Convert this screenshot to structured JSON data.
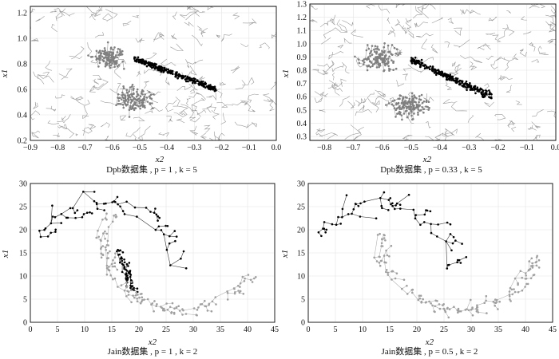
{
  "chart_data": [
    {
      "type": "scatter",
      "subplot": "top-left",
      "caption": "Dpb数据集 , p = 1 , k = 5",
      "xlabel": "x2",
      "ylabel": "x1",
      "xlim": [
        -0.9,
        0.0
      ],
      "ylim": [
        0.2,
        1.25
      ],
      "xticks": [
        "−0.9",
        "−0.8",
        "−0.7",
        "−0.6",
        "−0.5",
        "−0.4",
        "−0.3",
        "−0.2",
        "−0.1",
        "0.0"
      ],
      "yticks": [
        "0.2",
        "0.4",
        "0.6",
        "0.8",
        "1.0",
        "1.2"
      ],
      "grid": true,
      "clusters": [
        {
          "color": "#000000",
          "x_range": [
            -0.52,
            -0.22
          ],
          "y_range": [
            0.6,
            0.84
          ],
          "shape": "diagonal band"
        },
        {
          "color": "#808080",
          "x_range": [
            -0.62,
            -0.42
          ],
          "y_range": [
            0.38,
            0.66
          ],
          "shape": "blob"
        },
        {
          "color": "#808080",
          "x_range": [
            -0.7,
            -0.52
          ],
          "y_range": [
            0.72,
            0.98
          ],
          "shape": "blob"
        }
      ]
    },
    {
      "type": "scatter",
      "subplot": "top-right",
      "caption": "Dpb数据集 , p = 0.33 , k = 5",
      "xlabel": "x2",
      "ylabel": "x1",
      "xlim": [
        -0.85,
        0.0
      ],
      "ylim": [
        0.27,
        1.3
      ],
      "xticks": [
        "−0.8",
        "−0.7",
        "−0.6",
        "−0.5",
        "−0.4",
        "−0.3",
        "−0.2",
        "−0.1",
        "0.0"
      ],
      "yticks": [
        "0.3",
        "0.4",
        "0.5",
        "0.6",
        "0.7",
        "0.8",
        "0.9",
        "1.0",
        "1.1",
        "1.2",
        "1.3"
      ],
      "grid": true,
      "clusters": [
        {
          "color": "#000000",
          "x_range": [
            -0.5,
            -0.22
          ],
          "y_range": [
            0.6,
            0.88
          ],
          "shape": "diagonal band"
        },
        {
          "color": "#808080",
          "x_range": [
            -0.6,
            -0.4
          ],
          "y_range": [
            0.4,
            0.66
          ],
          "shape": "blob"
        },
        {
          "color": "#808080",
          "x_range": [
            -0.7,
            -0.52
          ],
          "y_range": [
            0.75,
            1.02
          ],
          "shape": "blob"
        }
      ]
    },
    {
      "type": "scatter",
      "subplot": "bottom-left",
      "caption": "Jain数据集 , p = 1 , k = 2",
      "xlabel": "x2",
      "ylabel": "x1",
      "xlim": [
        0,
        45
      ],
      "ylim": [
        0,
        30
      ],
      "xticks": [
        "0",
        "5",
        "10",
        "15",
        "20",
        "25",
        "30",
        "35",
        "40",
        "45"
      ],
      "yticks": [
        "0",
        "5",
        "10",
        "15",
        "20",
        "25",
        "30"
      ],
      "grid": true,
      "clusters": [
        {
          "color": "#000000",
          "shape": "upper arc",
          "x_range": [
            1,
            28
          ],
          "y_range": [
            13,
            27
          ]
        },
        {
          "color": "#000000",
          "shape": "inner dense tail",
          "x_range": [
            15,
            20
          ],
          "y_range": [
            6,
            16
          ]
        },
        {
          "color": "#a0a0a0",
          "shape": "lower arc",
          "x_range": [
            17,
            42
          ],
          "y_range": [
            2,
            17
          ]
        }
      ]
    },
    {
      "type": "scatter",
      "subplot": "bottom-right",
      "caption": "Jain数据集 , p = 0.5 , k = 2",
      "xlabel": "x2",
      "ylabel": "x1",
      "xlim": [
        0,
        45
      ],
      "ylim": [
        0,
        30
      ],
      "xticks": [
        "0",
        "5",
        "10",
        "15",
        "20",
        "25",
        "30",
        "35",
        "40",
        "45"
      ],
      "yticks": [
        "0",
        "5",
        "10",
        "15",
        "20",
        "25",
        "30"
      ],
      "grid": true,
      "clusters": [
        {
          "color": "#000000",
          "shape": "upper arc",
          "x_range": [
            1,
            28
          ],
          "y_range": [
            13,
            27
          ]
        },
        {
          "color": "#a0a0a0",
          "shape": "lower arc",
          "x_range": [
            14,
            42
          ],
          "y_range": [
            2,
            17
          ]
        }
      ]
    }
  ]
}
